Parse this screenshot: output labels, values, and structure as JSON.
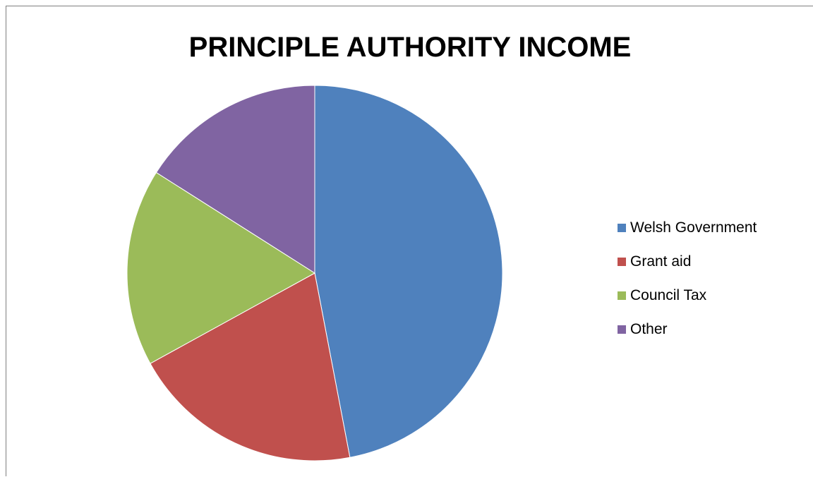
{
  "chart_data": {
    "type": "pie",
    "title": "PRINCIPLE AUTHORITY INCOME",
    "categories": [
      "Welsh Government",
      "Grant aid",
      "Council Tax",
      "Other"
    ],
    "values": [
      47,
      20,
      17,
      16
    ],
    "colors": [
      "#4f81bd",
      "#c0504d",
      "#9bbb59",
      "#8064a2"
    ],
    "start_angle": "12 o'clock",
    "direction": "clockwise",
    "legend_position": "right"
  }
}
